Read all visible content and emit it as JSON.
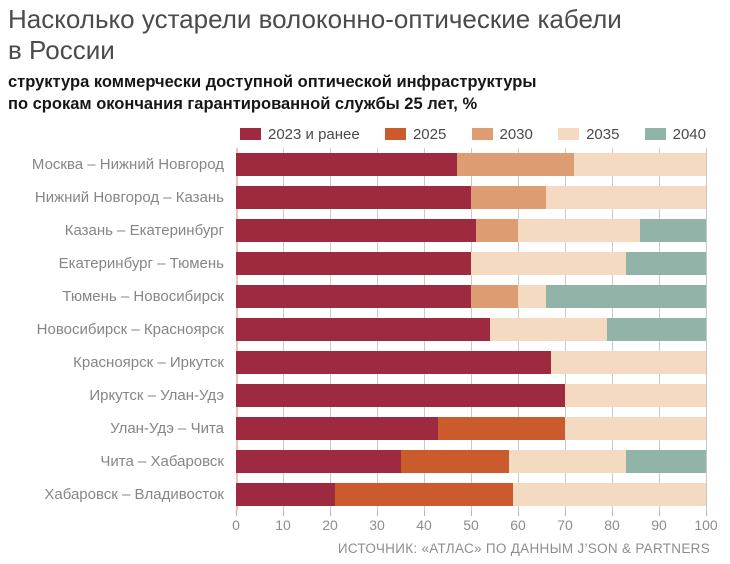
{
  "title": {
    "line1": "Насколько устарели волоконно-оптические кабели",
    "line2": "в России"
  },
  "subtitle": {
    "line1": "структура коммерчески доступной оптической инфраструктуры",
    "line2": "по срокам окончания гарантированной службы 25 лет, %"
  },
  "source": "ИСТОЧНИК: «АТЛАС» ПО ДАННЫМ J’SON & PARTNERS",
  "colors": {
    "color_2023": "#9e2a40",
    "color_2025": "#cb5a2d",
    "color_2030": "#dd9c72",
    "color_2035": "#f5dac2",
    "color_2040": "#92b4a8",
    "gridline": "#c9c9c9",
    "zero_line": "#f0c2b6"
  },
  "chart_data": {
    "type": "bar",
    "orientation": "horizontal",
    "stacked": true,
    "title": "Насколько устарели волоконно-оптические кабели в России",
    "subtitle": "структура коммерчески доступной оптической инфраструктуры по срокам окончания гарантированной службы 25 лет, %",
    "xlabel": "",
    "ylabel": "",
    "xlim": [
      0,
      100
    ],
    "x_ticks": [
      0,
      10,
      20,
      30,
      40,
      50,
      60,
      70,
      80,
      90,
      100
    ],
    "grid": "vertical",
    "legend_position": "top",
    "categories": [
      "Москва – Нижний Новгород",
      "Нижний Новгород – Казань",
      "Казань – Екатеринбург",
      "Екатеринбург – Тюмень",
      "Тюмень – Новосибирск",
      "Новосибирск – Красноярск",
      "Красноярск – Иркутск",
      "Иркутск – Улан-Удэ",
      "Улан-Удэ – Чита",
      "Чита – Хабаровск",
      "Хабаровск – Владивосток"
    ],
    "series": [
      {
        "name": "2023 и ранее",
        "key": "2023-and-earlier",
        "color": "#9e2a40",
        "values": [
          47,
          50,
          51,
          50,
          50,
          54,
          67,
          70,
          43,
          35,
          21
        ]
      },
      {
        "name": "2025",
        "key": "2025",
        "color": "#cb5a2d",
        "values": [
          0,
          0,
          0,
          0,
          0,
          0,
          0,
          0,
          27,
          23,
          38
        ]
      },
      {
        "name": "2030",
        "key": "2030",
        "color": "#dd9c72",
        "values": [
          25,
          16,
          9,
          0,
          10,
          0,
          0,
          0,
          0,
          0,
          0
        ]
      },
      {
        "name": "2035",
        "key": "2035",
        "color": "#f5dac2",
        "values": [
          28,
          34,
          26,
          33,
          6,
          25,
          33,
          30,
          30,
          25,
          41
        ]
      },
      {
        "name": "2040",
        "key": "2040",
        "color": "#92b4a8",
        "values": [
          0,
          0,
          14,
          17,
          34,
          21,
          0,
          0,
          0,
          17,
          0
        ]
      }
    ]
  }
}
